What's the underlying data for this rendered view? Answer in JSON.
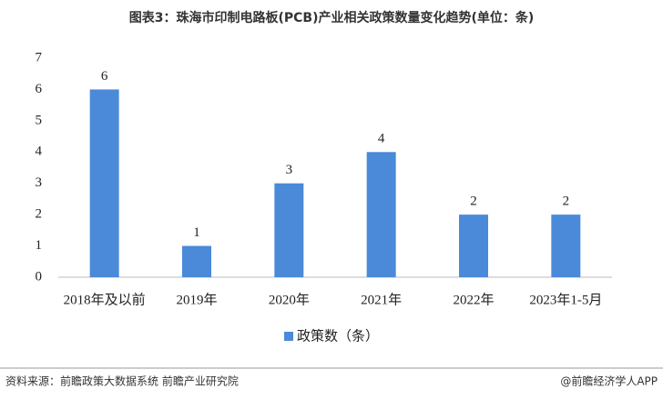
{
  "chart_data": {
    "type": "bar",
    "title": "图表3：珠海市印制电路板(PCB)产业相关政策数量变化趋势(单位：条)",
    "categories": [
      "2018年及以前",
      "2019年",
      "2020年",
      "2021年",
      "2022年",
      "2023年1-5月"
    ],
    "series": [
      {
        "name": "政策数（条）",
        "color": "#4a8ad9",
        "values": [
          6,
          1,
          3,
          4,
          2,
          2
        ]
      }
    ],
    "ylim": [
      0,
      7
    ],
    "yticks": [
      0,
      1,
      2,
      3,
      4,
      5,
      6,
      7
    ],
    "grid": false,
    "legend": "bottom",
    "source": "资料来源：前瞻政策大数据系统 前瞻产业研究院",
    "credit": "@前瞻经济学人APP"
  }
}
